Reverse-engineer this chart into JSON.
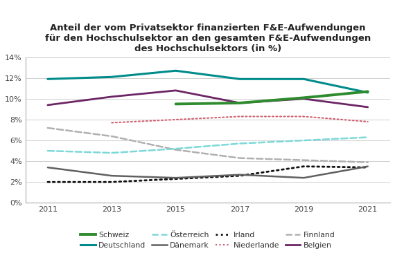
{
  "title": "Anteil der vom Privatsektor finanzierten F&E-Aufwendungen\nfür den Hochschulsektor an den gesamten F&E-Aufwendungen\ndes Hochschulsektors (in %)",
  "years": [
    2011,
    2013,
    2015,
    2017,
    2019,
    2021
  ],
  "series": {
    "Schweiz": [
      null,
      null,
      9.5,
      9.6,
      10.1,
      10.7
    ],
    "Deutschland": [
      11.9,
      12.1,
      12.7,
      11.9,
      11.9,
      10.6
    ],
    "Österreich": [
      5.0,
      4.8,
      5.2,
      5.7,
      6.0,
      6.3
    ],
    "Dänemark": [
      3.4,
      2.6,
      2.4,
      2.7,
      2.4,
      3.5
    ],
    "Irland": [
      2.0,
      2.0,
      2.3,
      2.6,
      3.5,
      3.4
    ],
    "Niederlande": [
      null,
      7.7,
      8.0,
      8.3,
      8.3,
      7.8
    ],
    "Finnland": [
      7.2,
      6.4,
      5.1,
      4.3,
      4.1,
      3.9
    ],
    "Belgien": [
      9.4,
      10.2,
      10.8,
      9.6,
      10.0,
      9.2
    ]
  },
  "colors": {
    "Schweiz": "#2e8b2e",
    "Deutschland": "#008b8b",
    "Österreich": "#7dd8d8",
    "Dänemark": "#606060",
    "Irland": "#111111",
    "Niederlande": "#d06070",
    "Finnland": "#b0b0b0",
    "Belgien": "#6b2565"
  },
  "linestyles": {
    "Schweiz": "solid",
    "Deutschland": "solid",
    "Österreich": "dashed",
    "Dänemark": "solid",
    "Irland": "dotted",
    "Niederlande": "dotted",
    "Finnland": "dashed",
    "Belgien": "solid"
  },
  "linewidths": {
    "Schweiz": 2.8,
    "Deutschland": 2.2,
    "Österreich": 1.8,
    "Dänemark": 1.8,
    "Irland": 2.0,
    "Niederlande": 1.5,
    "Finnland": 1.8,
    "Belgien": 2.0
  },
  "legend_order_row1": [
    "Schweiz",
    "Deutschland",
    "Österreich",
    "Dänemark"
  ],
  "legend_order_row2": [
    "Irland",
    "Niederlande",
    "Finnland",
    "Belgien"
  ],
  "ylim": [
    0,
    14
  ],
  "yticks": [
    0,
    2,
    4,
    6,
    8,
    10,
    12,
    14
  ],
  "ytick_labels": [
    "0%",
    "2%",
    "4%",
    "6%",
    "8%",
    "10%",
    "12%",
    "14%"
  ],
  "xticks": [
    2011,
    2013,
    2015,
    2017,
    2019,
    2021
  ],
  "background_color": "#ffffff",
  "plot_bg_color": "#ffffff",
  "grid_color": "#d0d0d0"
}
